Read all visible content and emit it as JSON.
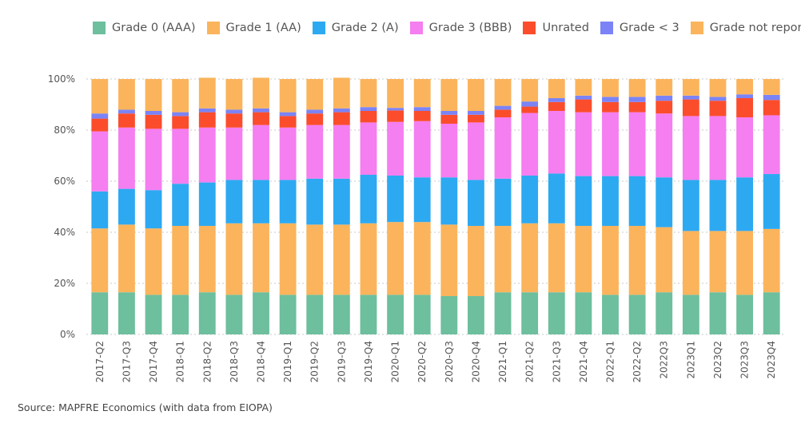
{
  "chart_data": {
    "type": "bar",
    "stacked": true,
    "categories": [
      "2017-Q2",
      "2017-Q3",
      "2017-Q4",
      "2018-Q1",
      "2018-Q2",
      "2018-Q3",
      "2018-Q4",
      "2019-Q1",
      "2019-Q2",
      "2019-Q3",
      "2019-Q4",
      "2020-Q1",
      "2020-Q2",
      "2020-Q3",
      "2020-Q4",
      "2021-Q1",
      "2021-Q2",
      "2021-Q3",
      "2021-Q4",
      "2022-Q1",
      "2022-Q2",
      "2022Q3",
      "2023Q1",
      "2023Q2",
      "2023Q3",
      "2023Q4"
    ],
    "series": [
      {
        "name": "Grade 0 (AAA)",
        "color": "#6dbf9e",
        "values": [
          16.5,
          16.5,
          15.5,
          15.5,
          16.5,
          15.5,
          16.5,
          15.5,
          15.5,
          15.5,
          15.5,
          15.5,
          15.5,
          15.0,
          15.0,
          16.5,
          16.5,
          16.5,
          16.5,
          15.5,
          15.5,
          16.5,
          15.5,
          16.5,
          15.5,
          16.5
        ]
      },
      {
        "name": "Grade 1 (AA)",
        "color": "#fbb45c",
        "values": [
          25.0,
          26.5,
          26.0,
          27.0,
          26.0,
          28.0,
          27.0,
          28.0,
          27.5,
          27.5,
          28.0,
          28.5,
          28.5,
          28.0,
          27.5,
          26.0,
          27.0,
          27.0,
          26.0,
          27.0,
          27.0,
          25.5,
          25.0,
          24.0,
          25.0,
          24.8
        ]
      },
      {
        "name": "Grade 2 (A)",
        "color": "#2da9f2",
        "values": [
          14.5,
          14.0,
          15.0,
          16.5,
          17.0,
          17.0,
          17.0,
          17.0,
          18.0,
          18.0,
          19.0,
          18.2,
          17.5,
          18.5,
          18.0,
          18.5,
          18.7,
          19.5,
          19.5,
          19.5,
          19.5,
          19.5,
          20.0,
          20.0,
          21.0,
          21.5
        ]
      },
      {
        "name": "Grade 3 (BBB)",
        "color": "#f57ef0",
        "values": [
          23.5,
          24.0,
          24.0,
          21.5,
          21.5,
          20.5,
          21.5,
          20.5,
          21.0,
          21.0,
          20.5,
          21.0,
          22.0,
          21.0,
          22.5,
          24.0,
          24.5,
          24.5,
          25.0,
          25.0,
          25.0,
          25.0,
          25.0,
          25.0,
          23.5,
          23.0
        ]
      },
      {
        "name": "Unrated",
        "color": "#fb4d2c",
        "values": [
          5.0,
          5.5,
          5.5,
          5.0,
          6.0,
          5.5,
          5.0,
          4.5,
          4.5,
          5.0,
          4.5,
          4.5,
          4.0,
          3.5,
          3.0,
          3.0,
          2.5,
          3.5,
          5.0,
          4.0,
          4.0,
          5.0,
          6.5,
          6.0,
          7.5,
          6.0
        ]
      },
      {
        "name": "Grade < 3",
        "color": "#7b83f6",
        "values": [
          2.0,
          1.5,
          1.5,
          1.5,
          1.5,
          1.5,
          1.5,
          1.5,
          1.5,
          1.5,
          1.5,
          1.0,
          1.5,
          1.5,
          1.5,
          1.5,
          2.0,
          1.5,
          1.5,
          2.0,
          2.0,
          2.0,
          1.5,
          1.5,
          1.5,
          2.0
        ]
      },
      {
        "name": "Grade not reported",
        "color": "#fbb45c",
        "values": [
          13.5,
          12.0,
          12.5,
          13.0,
          12.0,
          12.0,
          12.0,
          13.0,
          12.0,
          12.0,
          11.0,
          11.3,
          11.0,
          12.5,
          12.5,
          10.5,
          8.8,
          7.5,
          6.5,
          7.0,
          7.0,
          6.5,
          6.5,
          7.0,
          6.0,
          6.2
        ]
      }
    ],
    "ylim": [
      0,
      100
    ],
    "yticks": [
      "0%",
      "20%",
      "40%",
      "60%",
      "80%",
      "100%"
    ],
    "grid": true,
    "legend_position": "top"
  },
  "source": "Source: MAPFRE Economics (with data from EIOPA)"
}
